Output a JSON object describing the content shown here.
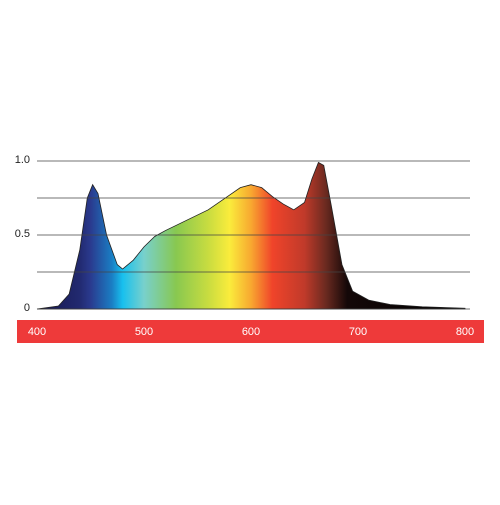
{
  "chart_data": {
    "type": "area",
    "x": [
      400,
      420,
      430,
      440,
      447,
      452,
      457,
      465,
      475,
      480,
      490,
      500,
      510,
      520,
      540,
      560,
      580,
      590,
      600,
      610,
      620,
      630,
      640,
      650,
      657,
      663,
      668,
      675,
      685,
      695,
      710,
      730,
      760,
      800
    ],
    "values": [
      0,
      0.02,
      0.1,
      0.4,
      0.75,
      0.84,
      0.78,
      0.5,
      0.3,
      0.27,
      0.33,
      0.42,
      0.49,
      0.53,
      0.6,
      0.67,
      0.77,
      0.82,
      0.84,
      0.82,
      0.76,
      0.71,
      0.67,
      0.72,
      0.88,
      0.99,
      0.97,
      0.7,
      0.3,
      0.12,
      0.06,
      0.03,
      0.015,
      0.005
    ],
    "xlim": [
      400,
      800
    ],
    "xticks": [
      400,
      500,
      600,
      700,
      800
    ],
    "ylim": [
      0,
      1
    ],
    "yticks": [
      0,
      0.5,
      {
        "value": 1,
        "label": "1.0"
      }
    ],
    "minor_yticks": [
      0.25,
      0.75
    ],
    "grid": true,
    "axis_band_color": "#ee3a3a"
  }
}
